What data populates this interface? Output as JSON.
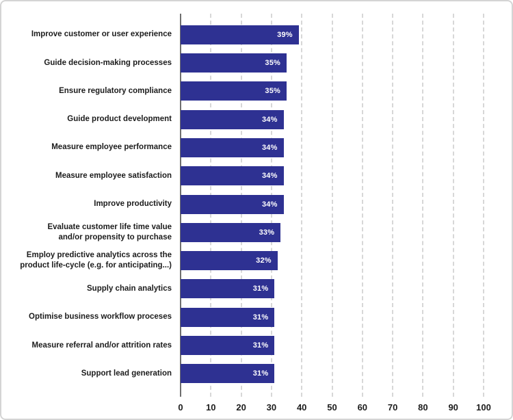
{
  "chart_data": {
    "type": "bar",
    "orientation": "horizontal",
    "title": "",
    "xlabel": "",
    "ylabel": "",
    "xlim": [
      0,
      100
    ],
    "grid": true,
    "grid_style": "dashed-vertical",
    "legend": "none",
    "categories": [
      "Improve customer or user experience",
      "Guide decision-making processes",
      "Ensure regulatory compliance",
      "Guide product development",
      "Measure employee performance",
      "Measure employee satisfaction",
      "Improve productivity",
      "Evaluate customer life time value\nand/or propensity to purchase",
      "Employ predictive analytics across the\nproduct life-cycle (e.g. for anticipating...)",
      "Supply chain analytics",
      "Optimise business workflow proceses",
      "Measure referral and/or attrition rates",
      "Support lead generation"
    ],
    "values": [
      39,
      35,
      35,
      34,
      34,
      34,
      34,
      33,
      32,
      31,
      31,
      31,
      31
    ],
    "value_labels": [
      "39%",
      "35%",
      "35%",
      "34%",
      "34%",
      "34%",
      "34%",
      "33%",
      "32%",
      "31%",
      "31%",
      "31%",
      "31%"
    ],
    "x_ticks": [
      0,
      10,
      20,
      30,
      40,
      50,
      60,
      70,
      80,
      90,
      100
    ],
    "x_tick_labels": [
      "0",
      "10",
      "20",
      "30",
      "40",
      "50",
      "60",
      "70",
      "80",
      "90",
      "100"
    ],
    "colors": {
      "bar": "#2e3192",
      "bar_value_text": "#ffffff",
      "category_label": "#1c1c1c",
      "tick_label": "#1c1c1c",
      "gridline": "#d7d7d7",
      "axis_line": "#6e6e6e",
      "background": "#ffffff",
      "frame_border": "#d4d4d4"
    }
  }
}
